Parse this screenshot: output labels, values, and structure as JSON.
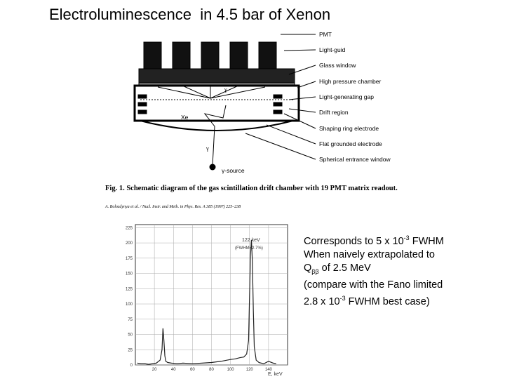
{
  "header": {
    "title": "Electroluminescence  in 4.5 bar of Xenon"
  },
  "diagram": {
    "labels": [
      "PMT",
      "Light-guid",
      "Glass window",
      "High pressure chamber",
      "Light-generating gap",
      "Drift region",
      "Shaping ring electrode",
      "Flat grounded electrode",
      "Spherical entrance window"
    ],
    "xe": "Xe",
    "gamma_top": "γ",
    "gamma_bottom": "γ",
    "source": "γ-source",
    "caption": "Fig. 1. Schematic diagram of the gas scintillation drift chamber with 19 PMT matrix readout.",
    "reference": "A. Bolozdynya et al. / Nucl. Instr. and Meth. in Phys. Res. A 385 (1997) 225–238"
  },
  "spectrum": {
    "type": "line",
    "peak_label": "122 keV",
    "peak_note": "(FWHM=2.7%)",
    "x_label": "E, keV",
    "xlim": [
      0,
      160
    ],
    "ylim": [
      0,
      230
    ],
    "xticks": [
      20,
      40,
      60,
      80,
      100,
      120,
      140
    ],
    "yticks": [
      0,
      25,
      50,
      75,
      100,
      125,
      150,
      175,
      200,
      225
    ],
    "grid": true,
    "color": "#222",
    "x": [
      2,
      6,
      10,
      14,
      18,
      22,
      26,
      28,
      29,
      30,
      31,
      32,
      34,
      38,
      44,
      50,
      60,
      70,
      80,
      90,
      100,
      105,
      110,
      114,
      117,
      119,
      120,
      121,
      122,
      123,
      124,
      125,
      127,
      130,
      135,
      140,
      145,
      148
    ],
    "values": [
      3,
      2,
      2,
      1,
      2,
      3,
      8,
      25,
      60,
      40,
      15,
      6,
      4,
      3,
      2,
      3,
      2,
      3,
      4,
      6,
      9,
      10,
      12,
      13,
      18,
      40,
      110,
      180,
      205,
      170,
      90,
      30,
      8,
      4,
      2,
      6,
      3,
      2
    ]
  },
  "notes": {
    "lines": [
      {
        "text": "Corresponds to 5 x 10",
        "sup": "-3",
        "after": " FWHM"
      },
      {
        "text": "When naively extrapolated to"
      },
      {
        "text": "Q",
        "sub": "ββ",
        "after": " of 2.5 MeV"
      },
      {
        "text": "(compare with the Fano limited"
      },
      {
        "text": "2.8 x 10",
        "sup": "-3",
        "after": " FWHM best case)"
      }
    ]
  }
}
